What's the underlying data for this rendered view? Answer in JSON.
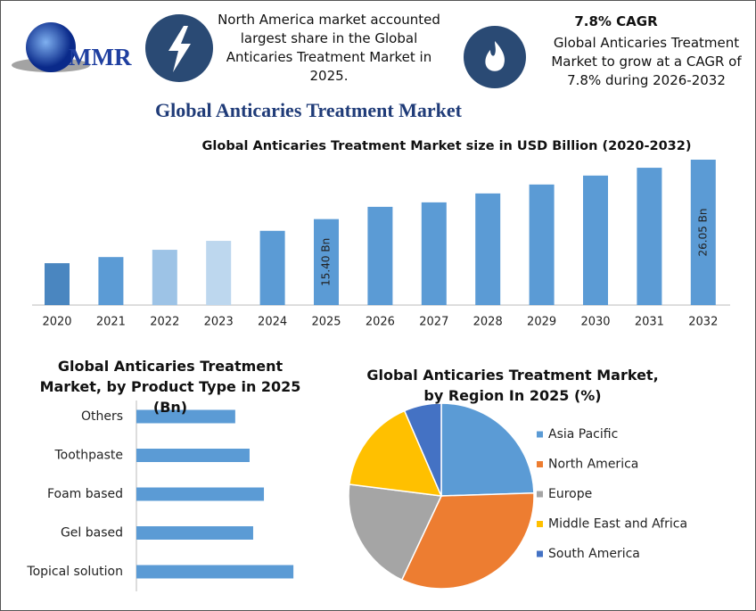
{
  "header": {
    "logo": "MMR",
    "fact1": "North America market accounted largest share in the Global Anticaries Treatment Market in 2025.",
    "fact2_title": "7.8% CAGR",
    "fact2": "Global Anticaries Treatment Market to grow at a CAGR of 7.8% during 2026-2032",
    "title": "Global Anticaries Treatment Market"
  },
  "chart_data": [
    {
      "type": "bar",
      "title": "Global Anticaries Treatment Market size in USD Billion (2020-2032)",
      "categories": [
        "2020",
        "2021",
        "2022",
        "2023",
        "2024",
        "2025",
        "2026",
        "2027",
        "2028",
        "2029",
        "2030",
        "2031",
        "2032"
      ],
      "values": [
        7.5,
        8.6,
        9.9,
        11.5,
        13.3,
        15.4,
        17.6,
        18.4,
        20.0,
        21.6,
        23.2,
        24.6,
        26.05
      ],
      "value_labels": [
        null,
        null,
        null,
        null,
        null,
        "15.40 Bn",
        null,
        null,
        null,
        null,
        null,
        null,
        "26.05 Bn"
      ],
      "colors": [
        "#4a86c0",
        "#5b9bd5",
        "#9dc3e6",
        "#bdd7ee",
        "#5b9bd5",
        "#5b9bd5",
        "#5b9bd5",
        "#5b9bd5",
        "#5b9bd5",
        "#5b9bd5",
        "#5b9bd5",
        "#5b9bd5",
        "#5b9bd5"
      ]
    },
    {
      "type": "hbar",
      "title": "Global Anticaries Treatment Market, by Product Type in 2025 (Bn)",
      "categories": [
        "Others",
        "Toothpaste",
        "Foam based",
        "Gel based",
        "Topical solution"
      ],
      "values": [
        2.48,
        2.84,
        3.2,
        2.93,
        3.94
      ],
      "color": "#5b9bd5"
    },
    {
      "type": "pie",
      "title": "Global Anticaries Treatment Market, by Region In 2025 (%)",
      "categories": [
        "Asia Pacific",
        "North America",
        "Europe",
        "Middle East and Africa",
        "South America"
      ],
      "values": [
        24.5,
        32.5,
        20,
        16.5,
        6.5
      ],
      "colors": [
        "#5b9bd5",
        "#ed7d31",
        "#a5a5a5",
        "#ffc000",
        "#4472c4"
      ],
      "legend": "right"
    }
  ]
}
